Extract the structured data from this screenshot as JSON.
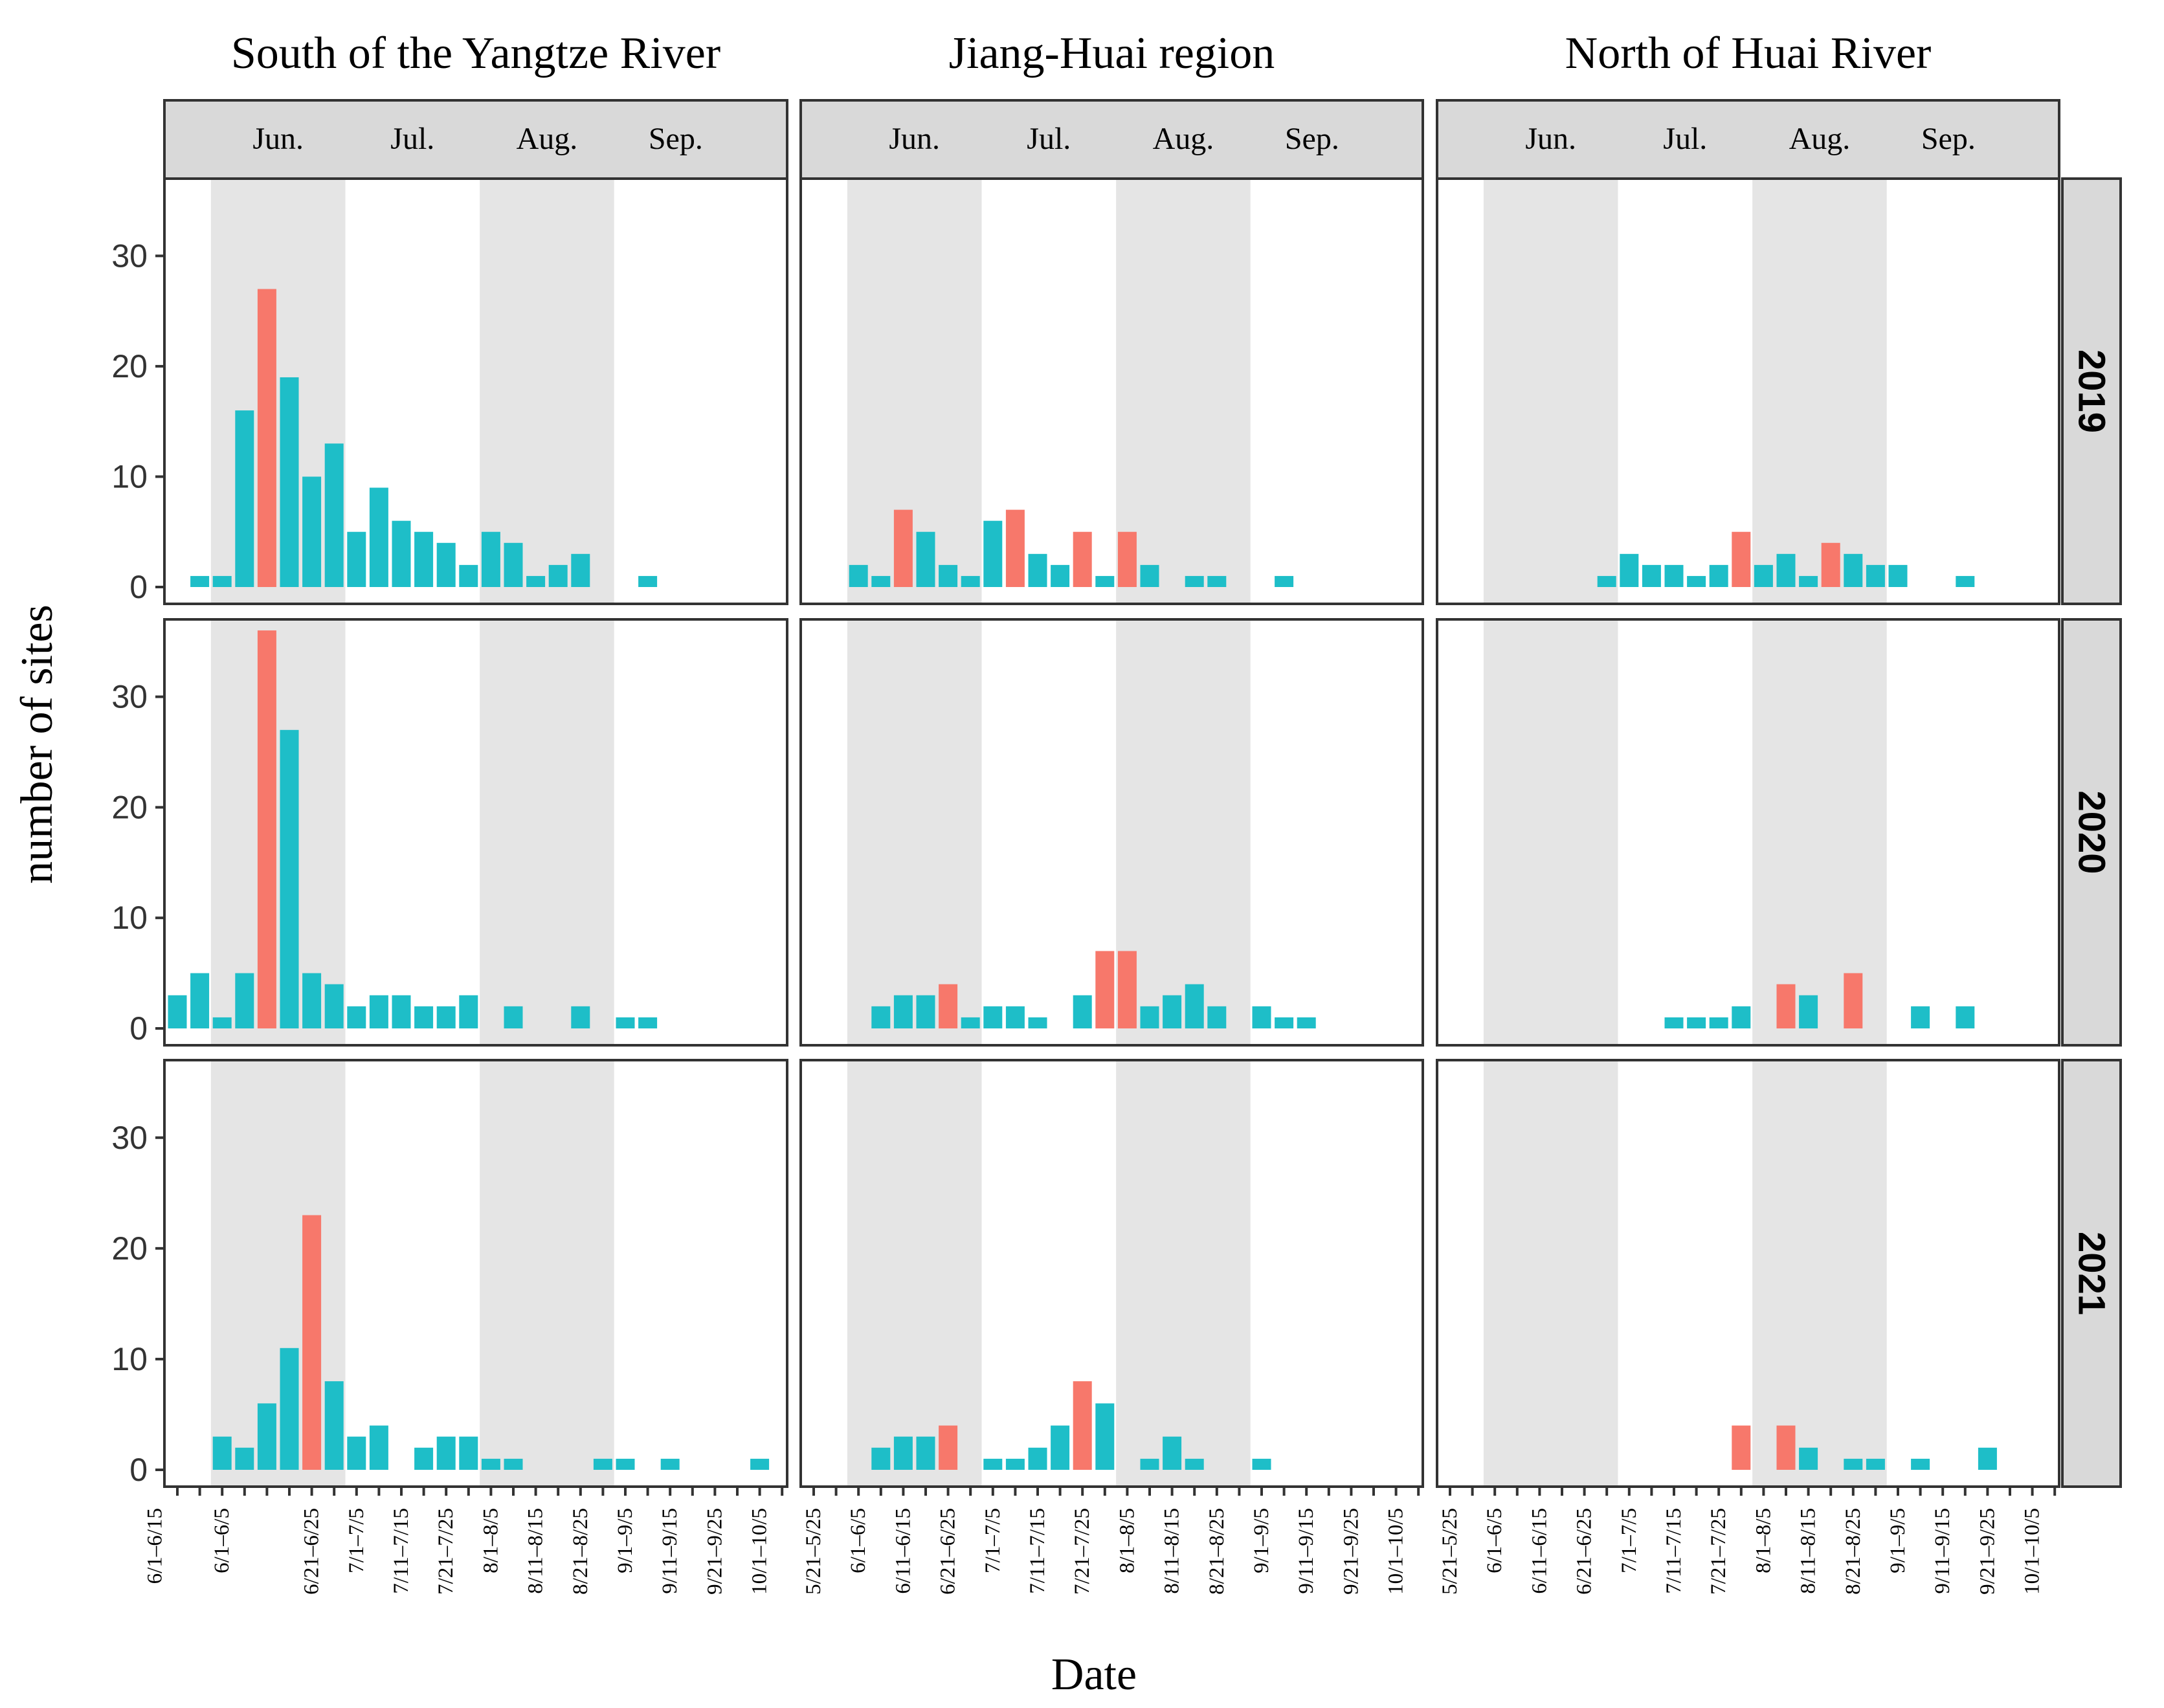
{
  "chart_data": {
    "type": "bar",
    "xlabel": "Date",
    "ylabel": "number of sites",
    "ylim": [
      0,
      37
    ],
    "yticks": [
      0,
      10,
      20,
      30
    ],
    "colors": {
      "normal": "#1ebec8",
      "peak": "#f7786b",
      "shade": "#e5e5e5",
      "strip": "#d9d9d9",
      "border": "#333333"
    },
    "regions": [
      "South of the Yangtze River",
      "Jiang-Huai region",
      "North of Huai River"
    ],
    "years": [
      "2019",
      "2020",
      "2021"
    ],
    "months": [
      "Jun.",
      "Jul.",
      "Aug.",
      "Sep."
    ],
    "categories": [
      "5/21–5/25",
      "5/26–5/31",
      "6/1–6/5",
      "6/6–6/10",
      "6/11–6/15",
      "6/16–6/20",
      "6/21–6/25",
      "6/26–6/30",
      "7/1–7/5",
      "7/6–7/10",
      "7/11–7/15",
      "7/16–7/20",
      "7/21–7/25",
      "7/26–7/31",
      "8/1–8/5",
      "8/6–8/10",
      "8/11–8/15",
      "8/16–8/20",
      "8/21–8/25",
      "8/26–8/31",
      "9/1–9/5",
      "9/6–9/10",
      "9/11–9/15",
      "9/16–9/20",
      "9/21–9/25",
      "9/26–9/30",
      "10/1–10/5",
      "10/6–10/10"
    ],
    "tick_labels": {
      "South of the Yangtze River": [
        "6/1–6/5",
        "6/1–6/15",
        "6/21–6/25",
        "7/1–7/5",
        "7/11–7/15",
        "7/21–7/25",
        "8/1–8/5",
        "8/11–8/15",
        "8/21–8/25",
        "9/1–9/5",
        "9/11–9/15",
        "9/21–9/25",
        "10/1–10/5"
      ],
      "Jiang-Huai region": [
        "5/21–5/25",
        "6/1–6/5",
        "6/11–6/15",
        "6/21–6/25",
        "7/1–7/5",
        "7/11–7/15",
        "7/21–7/25",
        "8/1–8/5",
        "8/11–8/15",
        "8/21–8/25",
        "9/1–9/5",
        "9/11–9/15",
        "9/21–9/25",
        "10/1–10/5"
      ],
      "North of Huai River": [
        "5/21–5/25",
        "6/1–6/5",
        "6/11–6/15",
        "6/21–6/25",
        "7/1–7/5",
        "7/11–7/15",
        "7/21–7/25",
        "8/1–8/5",
        "8/11–8/15",
        "8/21–8/25",
        "9/1–9/5",
        "9/11–9/15",
        "9/21–9/25",
        "10/1–10/5"
      ]
    },
    "shaded_periods": {
      "South of the Yangtze River": [
        [
          "6/1–6/5",
          "6/26–6/30"
        ],
        [
          "8/1–8/5",
          "8/26–8/31"
        ]
      ],
      "Jiang-Huai region": [
        [
          "6/1–6/5",
          "6/26–6/30"
        ],
        [
          "8/1–8/5",
          "8/26–8/31"
        ]
      ],
      "North of Huai River": [
        [
          "6/1–6/5",
          "6/26–6/30"
        ],
        [
          "8/1–8/5",
          "8/26–8/31"
        ]
      ]
    },
    "series": {
      "South of the Yangtze River": {
        "2019": [
          0,
          1,
          1,
          16,
          27,
          19,
          10,
          13,
          5,
          9,
          6,
          5,
          4,
          2,
          5,
          4,
          1,
          2,
          3,
          0,
          0,
          1,
          0,
          0,
          0,
          0,
          0,
          0
        ],
        "2020": [
          3,
          5,
          1,
          5,
          36,
          27,
          5,
          4,
          2,
          3,
          3,
          2,
          2,
          3,
          0,
          2,
          0,
          0,
          2,
          0,
          1,
          1,
          0,
          0,
          0,
          0,
          0,
          0
        ],
        "2021": [
          0,
          0,
          3,
          2,
          6,
          11,
          23,
          8,
          3,
          4,
          0,
          2,
          3,
          3,
          1,
          1,
          0,
          0,
          0,
          1,
          1,
          0,
          1,
          0,
          0,
          0,
          1,
          0
        ]
      },
      "Jiang-Huai region": {
        "2019": [
          0,
          0,
          2,
          1,
          7,
          5,
          2,
          1,
          6,
          7,
          3,
          2,
          5,
          1,
          5,
          2,
          0,
          1,
          1,
          0,
          0,
          1,
          0,
          0,
          0,
          0,
          0,
          0
        ],
        "2020": [
          0,
          0,
          0,
          2,
          3,
          3,
          4,
          1,
          2,
          2,
          1,
          0,
          3,
          7,
          7,
          2,
          3,
          4,
          2,
          0,
          2,
          1,
          1,
          0,
          0,
          0,
          0,
          0
        ],
        "2021": [
          0,
          0,
          0,
          2,
          3,
          3,
          4,
          0,
          1,
          1,
          2,
          4,
          8,
          6,
          0,
          1,
          3,
          1,
          0,
          0,
          1,
          0,
          0,
          0,
          0,
          0,
          0,
          0
        ]
      },
      "North of Huai River": {
        "2019": [
          0,
          0,
          0,
          0,
          0,
          0,
          0,
          1,
          3,
          2,
          2,
          1,
          2,
          5,
          2,
          3,
          1,
          4,
          3,
          2,
          2,
          0,
          0,
          1,
          0,
          0,
          0,
          0
        ],
        "2020": [
          0,
          0,
          0,
          0,
          0,
          0,
          0,
          0,
          0,
          0,
          1,
          1,
          1,
          2,
          0,
          4,
          3,
          0,
          5,
          0,
          0,
          2,
          0,
          2,
          0,
          0,
          0,
          0
        ],
        "2021": [
          0,
          0,
          0,
          0,
          0,
          0,
          0,
          0,
          0,
          0,
          0,
          0,
          0,
          4,
          0,
          4,
          2,
          0,
          1,
          1,
          0,
          1,
          0,
          0,
          2,
          0,
          0,
          0
        ]
      }
    },
    "peaks": {
      "South of the Yangtze River": {
        "2019": [
          4
        ],
        "2020": [
          4
        ],
        "2021": [
          6
        ]
      },
      "Jiang-Huai region": {
        "2019": [
          4,
          9,
          12,
          14
        ],
        "2020": [
          6,
          13,
          14
        ],
        "2021": [
          6,
          12
        ]
      },
      "North of Huai River": {
        "2019": [
          13,
          17
        ],
        "2020": [
          15,
          18
        ],
        "2021": [
          13,
          15
        ]
      }
    }
  }
}
